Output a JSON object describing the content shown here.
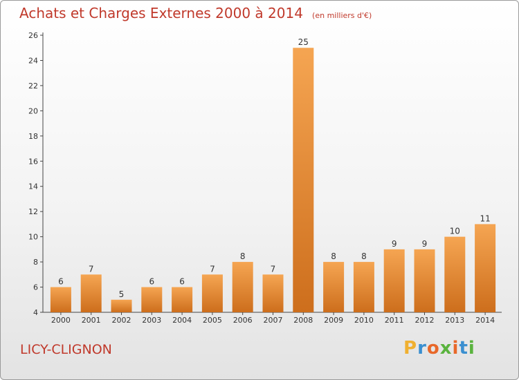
{
  "header": {
    "title": "Achats et Charges Externes 2000 à 2014",
    "unit": "(en milliers d'€)"
  },
  "footer": {
    "commune": "LICY-CLIGNON",
    "logo": [
      "P",
      "r",
      "o",
      "x",
      "i",
      "t",
      "i"
    ]
  },
  "colors": {
    "title": "#c0392b",
    "bar_top": "#f5a552",
    "bar_bottom": "#cd6e1c",
    "logo": [
      "#f0b030",
      "#3a8fd0",
      "#e8682a",
      "#5ab33e",
      "#e8682a",
      "#3a8fd0",
      "#5ab33e"
    ]
  },
  "chart_data": {
    "type": "bar",
    "title": "Achats et Charges Externes 2000 à 2014",
    "subtitle": "(en milliers d'€)",
    "categories": [
      "2000",
      "2001",
      "2002",
      "2003",
      "2004",
      "2005",
      "2006",
      "2007",
      "2008",
      "2009",
      "2010",
      "2011",
      "2012",
      "2013",
      "2014"
    ],
    "values": [
      6,
      7,
      5,
      6,
      6,
      7,
      8,
      7,
      25,
      8,
      8,
      9,
      9,
      10,
      11
    ],
    "ylim": [
      4,
      26
    ],
    "yticks": [
      4,
      6,
      8,
      10,
      12,
      14,
      16,
      18,
      20,
      22,
      24,
      26
    ],
    "grid": false,
    "legend": "none"
  }
}
